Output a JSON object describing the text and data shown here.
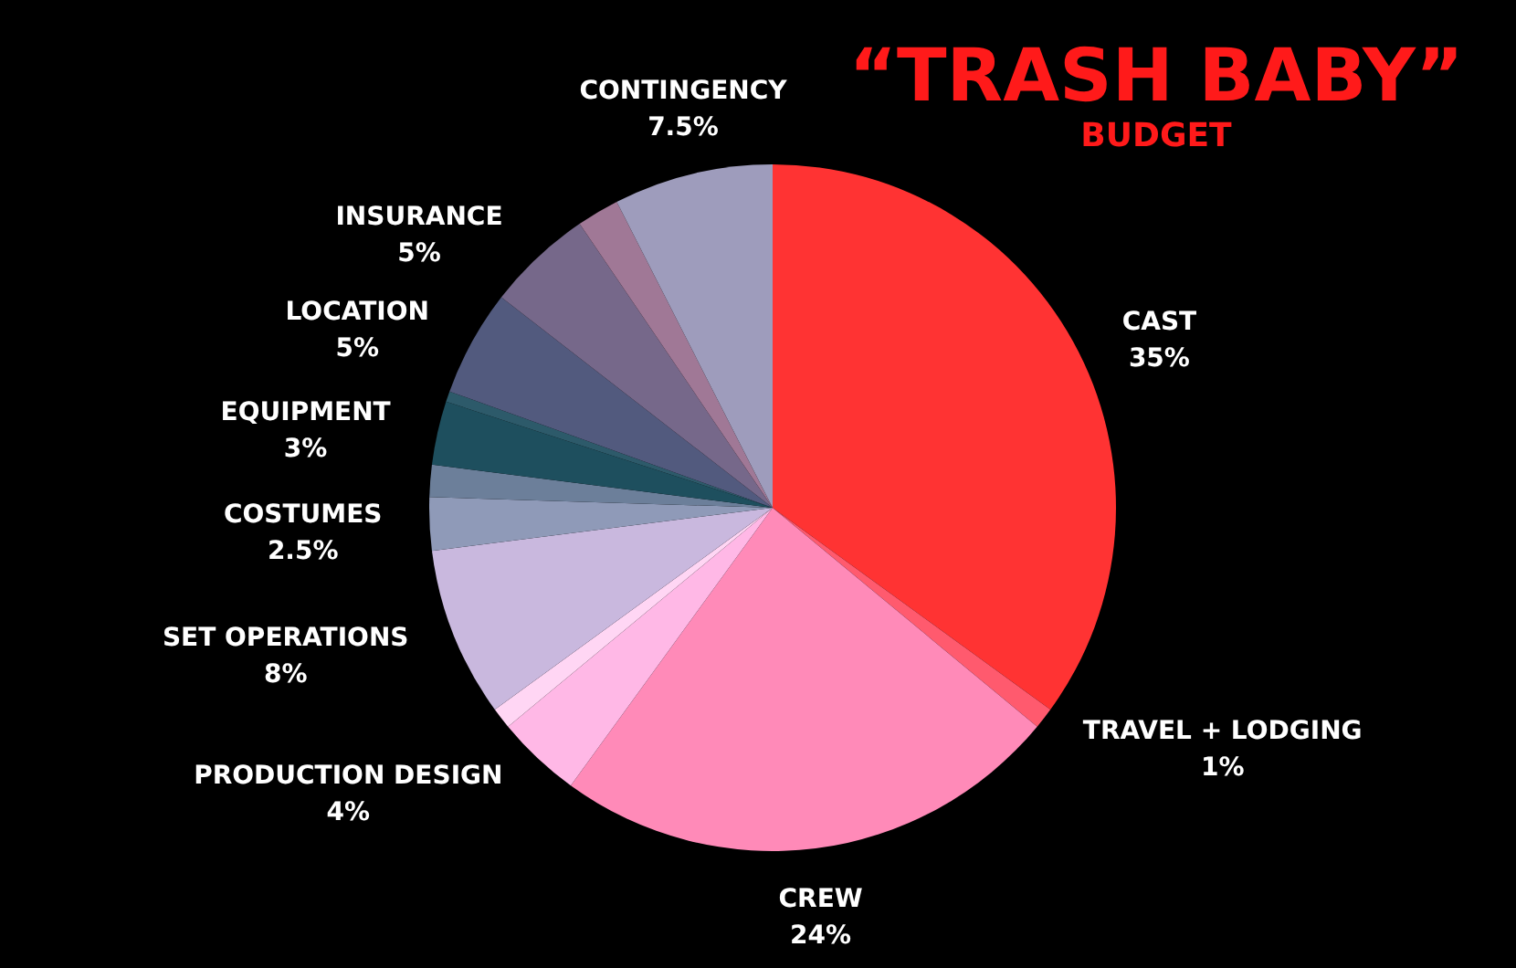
{
  "chart_data": {
    "type": "pie",
    "title": "“TRASH BABY”",
    "subtitle": "BUDGET",
    "categories": [
      "CAST",
      "TRAVEL + LODGING",
      "CREW",
      "PRODUCTION DESIGN",
      null,
      "SET OPERATIONS",
      "COSTUMES",
      null,
      "EQUIPMENT",
      null,
      "LOCATION",
      "INSURANCE",
      null,
      "CONTINGENCY"
    ],
    "values": [
      35,
      1,
      24,
      4,
      1,
      8,
      2.5,
      1.5,
      3,
      0.5,
      5,
      5,
      2,
      7.5
    ],
    "value_labels": [
      "35%",
      "1%",
      "24%",
      "4%",
      null,
      "8%",
      "2.5%",
      null,
      "3%",
      null,
      "5%",
      "5%",
      null,
      "7.5%"
    ],
    "colors": [
      "#ff3333",
      "#ff5a6e",
      "#ff8ab8",
      "#ffb8e6",
      "#ffd6f4",
      "#c9b8de",
      "#8f9ab8",
      "#6c7f9a",
      "#1e4f5e",
      "#2d5a6a",
      "#525a7e",
      "#76688a",
      "#a07896",
      "#9e9cbc"
    ]
  }
}
